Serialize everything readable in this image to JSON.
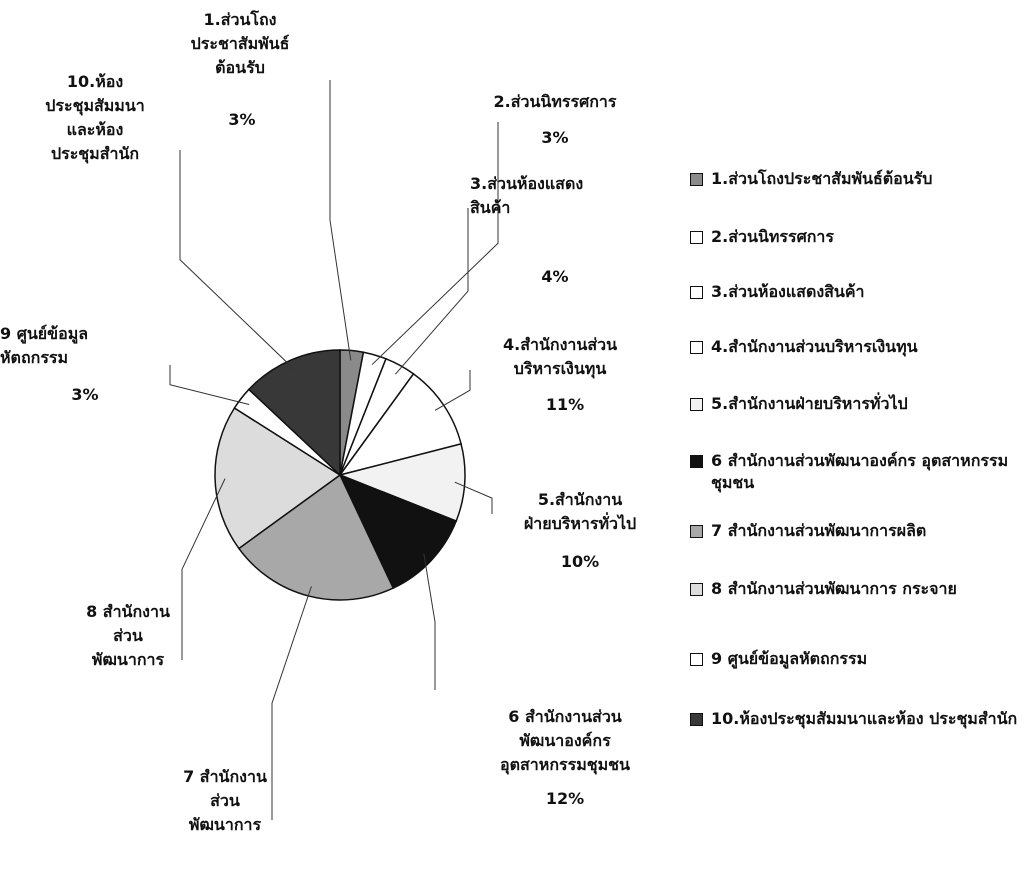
{
  "chart_data": {
    "type": "pie",
    "categories": [
      "1.ส่วนโถงประชาสัมพันธ์ต้อนรับ",
      "2.ส่วนนิทรรศการ",
      "3.ส่วนห้องแสดงสินค้า",
      "4.สำนักงานส่วนบริหารเงินทุน",
      "5.สำนักงานฝ่ายบริหารทั่วไป",
      "6 สำนักงานส่วนพัฒนาองค์กร อุตสาหกรรมชุมชน",
      "7 สำนักงานส่วนพัฒนาการผลิต",
      "8 สำนักงานส่วนพัฒนาการ กระจาย",
      "9 ศูนย์ข้อมูลหัตถกรรม",
      "10.ห้องประชุมสัมมนาและห้อง ประชุมสำนัก"
    ],
    "callouts": [
      "1.ส่วนโถง\nประชาสัมพันธ์\nต้อนรับ",
      "2.ส่วนนิทรรศการ",
      "3.ส่วนห้องแสดง\nสินค้า",
      "4.สำนักงานส่วน\nบริหารเงินทุน",
      "5.สำนักงาน\nฝ่ายบริหารทั่วไป",
      "6 สำนักงานส่วน\nพัฒนาองค์กร\nอุตสาหกรรมชุมชน",
      "7 สำนักงาน\nส่วน\nพัฒนาการ",
      "8 สำนักงาน\nส่วน\nพัฒนาการ",
      "9 ศูนย์ข้อมูล\nหัตถกรรม",
      "10.ห้อง\nประชุมสัมมนา\nและห้อง\nประชุมสำนัก"
    ],
    "values": [
      3,
      3,
      4,
      11,
      10,
      12,
      22,
      19,
      3,
      13
    ],
    "value_labels": [
      "3%",
      "3%",
      "4%",
      "11%",
      "10%",
      "12%",
      null,
      null,
      "3%",
      null
    ],
    "colors": [
      "#8a8a8a",
      "#ffffff",
      "#ffffff",
      "#ffffff",
      "#f2f2f2",
      "#111111",
      "#a8a8a8",
      "#dcdcdc",
      "#ffffff",
      "#383838"
    ]
  }
}
